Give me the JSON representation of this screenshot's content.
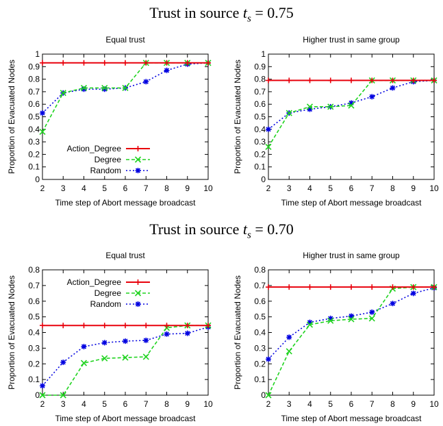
{
  "sections": [
    {
      "title_prefix": "Trust in source ",
      "title_math": "t",
      "title_sub": "s",
      "title_suffix": " = 0.75"
    },
    {
      "title_prefix": "Trust in source ",
      "title_math": "t",
      "title_sub": "s",
      "title_suffix": " = 0.70"
    }
  ],
  "colors": {
    "Action_Degree": "#e8000b",
    "Degree": "#1fd31f",
    "Random": "#0000e0"
  },
  "chart_data": [
    {
      "type": "line",
      "title": "Equal trust",
      "xlabel": "Time step of Abort message broadcast",
      "ylabel": "Proportion of Evacuated Nodes",
      "x": [
        2,
        3,
        4,
        5,
        6,
        7,
        8,
        9,
        10
      ],
      "xlim": [
        2,
        10
      ],
      "ylim": [
        0,
        1
      ],
      "yticks": [
        0,
        0.1,
        0.2,
        0.3,
        0.4,
        0.5,
        0.6,
        0.7,
        0.8,
        0.9,
        1
      ],
      "ytick_labels": [
        "0",
        "0.1",
        "0.2",
        "0.3",
        "0.4",
        "0.5",
        "0.6",
        "0.7",
        "0.8",
        "0.9",
        "1"
      ],
      "legend": "bottom-left",
      "grid": false,
      "series": [
        {
          "name": "Action_Degree",
          "values": [
            0.93,
            0.93,
            0.93,
            0.93,
            0.93,
            0.93,
            0.93,
            0.93,
            0.93
          ]
        },
        {
          "name": "Degree",
          "values": [
            0.38,
            0.69,
            0.73,
            0.73,
            0.73,
            0.93,
            0.93,
            0.93,
            0.93
          ]
        },
        {
          "name": "Random",
          "values": [
            0.53,
            0.69,
            0.72,
            0.72,
            0.73,
            0.78,
            0.87,
            0.92,
            0.93
          ]
        }
      ]
    },
    {
      "type": "line",
      "title": "Higher trust in same group",
      "xlabel": "Time step of Abort message broadcast",
      "ylabel": "Proportion of Evacuated Nodes",
      "x": [
        2,
        3,
        4,
        5,
        6,
        7,
        8,
        9,
        10
      ],
      "xlim": [
        2,
        10
      ],
      "ylim": [
        0,
        1
      ],
      "yticks": [
        0,
        0.1,
        0.2,
        0.3,
        0.4,
        0.5,
        0.6,
        0.7,
        0.8,
        0.9,
        1
      ],
      "ytick_labels": [
        "0",
        "0.1",
        "0.2",
        "0.3",
        "0.4",
        "0.5",
        "0.6",
        "0.7",
        "0.8",
        "0.9",
        "1"
      ],
      "grid": false,
      "series": [
        {
          "name": "Action_Degree",
          "values": [
            0.79,
            0.79,
            0.79,
            0.79,
            0.79,
            0.79,
            0.79,
            0.79,
            0.79
          ]
        },
        {
          "name": "Degree",
          "values": [
            0.26,
            0.53,
            0.58,
            0.58,
            0.59,
            0.79,
            0.79,
            0.79,
            0.79
          ]
        },
        {
          "name": "Random",
          "values": [
            0.4,
            0.53,
            0.56,
            0.58,
            0.61,
            0.66,
            0.73,
            0.78,
            0.79
          ]
        }
      ]
    },
    {
      "type": "line",
      "title": "Equal trust",
      "xlabel": "Time step of Abort message broadcast",
      "ylabel": "Proportion of Evacuated Nodes",
      "x": [
        2,
        3,
        4,
        5,
        6,
        7,
        8,
        9,
        10
      ],
      "xlim": [
        2,
        10
      ],
      "ylim": [
        0,
        0.8
      ],
      "yticks": [
        0,
        0.1,
        0.2,
        0.3,
        0.4,
        0.5,
        0.6,
        0.7,
        0.8
      ],
      "ytick_labels": [
        "0",
        "0.1",
        "0.2",
        "0.3",
        "0.4",
        "0.5",
        "0.6",
        "0.7",
        "0.8"
      ],
      "legend": "top-left",
      "grid": false,
      "series": [
        {
          "name": "Action_Degree",
          "values": [
            0.445,
            0.445,
            0.445,
            0.445,
            0.445,
            0.445,
            0.445,
            0.445,
            0.445
          ]
        },
        {
          "name": "Degree",
          "values": [
            0.0,
            0.0,
            0.205,
            0.235,
            0.24,
            0.245,
            0.43,
            0.445,
            0.445
          ]
        },
        {
          "name": "Random",
          "values": [
            0.06,
            0.21,
            0.31,
            0.335,
            0.345,
            0.35,
            0.39,
            0.395,
            0.435
          ]
        }
      ]
    },
    {
      "type": "line",
      "title": "Higher trust in same group",
      "xlabel": "Time step of Abort message broadcast",
      "ylabel": "Proportion of Evacuated Nodes",
      "x": [
        2,
        3,
        4,
        5,
        6,
        7,
        8,
        9,
        10
      ],
      "xlim": [
        2,
        10
      ],
      "ylim": [
        0,
        0.8
      ],
      "yticks": [
        0,
        0.1,
        0.2,
        0.3,
        0.4,
        0.5,
        0.6,
        0.7,
        0.8
      ],
      "ytick_labels": [
        "0",
        "0.1",
        "0.2",
        "0.3",
        "0.4",
        "0.5",
        "0.6",
        "0.7",
        "0.8"
      ],
      "grid": false,
      "series": [
        {
          "name": "Action_Degree",
          "values": [
            0.69,
            0.69,
            0.69,
            0.69,
            0.69,
            0.69,
            0.69,
            0.69,
            0.69
          ]
        },
        {
          "name": "Degree",
          "values": [
            0.0,
            0.28,
            0.45,
            0.475,
            0.485,
            0.49,
            0.68,
            0.69,
            0.69
          ]
        },
        {
          "name": "Random",
          "values": [
            0.23,
            0.37,
            0.465,
            0.49,
            0.505,
            0.53,
            0.585,
            0.65,
            0.685
          ]
        }
      ]
    }
  ]
}
